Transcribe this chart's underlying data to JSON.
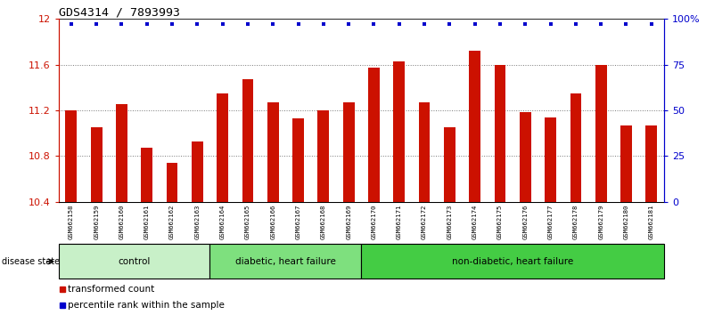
{
  "title": "GDS4314 / 7893993",
  "samples": [
    "GSM662158",
    "GSM662159",
    "GSM662160",
    "GSM662161",
    "GSM662162",
    "GSM662163",
    "GSM662164",
    "GSM662165",
    "GSM662166",
    "GSM662167",
    "GSM662168",
    "GSM662169",
    "GSM662170",
    "GSM662171",
    "GSM662172",
    "GSM662173",
    "GSM662174",
    "GSM662175",
    "GSM662176",
    "GSM662177",
    "GSM662178",
    "GSM662179",
    "GSM662180",
    "GSM662181"
  ],
  "bar_values": [
    11.2,
    11.05,
    11.25,
    10.87,
    10.74,
    10.93,
    11.35,
    11.47,
    11.27,
    11.13,
    11.2,
    11.27,
    11.57,
    11.63,
    11.27,
    11.05,
    11.72,
    11.6,
    11.18,
    11.14,
    11.35,
    11.6,
    11.07,
    11.07
  ],
  "bar_color": "#CC1100",
  "dot_color": "#0000CC",
  "ylim_left": [
    10.4,
    12.0
  ],
  "yticks_left": [
    10.4,
    10.8,
    11.2,
    11.6,
    12.0
  ],
  "ytick_labels_left": [
    "10.4",
    "10.8",
    "11.2",
    "11.6",
    "12"
  ],
  "yticks_right": [
    0,
    25,
    50,
    75,
    100
  ],
  "ytick_labels_right": [
    "0",
    "25",
    "50",
    "75",
    "100%"
  ],
  "hlines": [
    10.8,
    11.2,
    11.6
  ],
  "groups": [
    {
      "label": "control",
      "start": 0,
      "end": 6,
      "color": "#C8F0C8"
    },
    {
      "label": "diabetic, heart failure",
      "start": 6,
      "end": 12,
      "color": "#7EE07E"
    },
    {
      "label": "non-diabetic, heart failure",
      "start": 12,
      "end": 24,
      "color": "#44CC44"
    }
  ],
  "legend_bar_label": "transformed count",
  "legend_dot_label": "percentile rank within the sample",
  "left_axis_color": "#CC1100",
  "right_axis_color": "#0000CC",
  "title_color": "#000000",
  "disease_state_label": "disease state",
  "gray_bg": "#C8C8C8",
  "dotted_color": "#777777"
}
